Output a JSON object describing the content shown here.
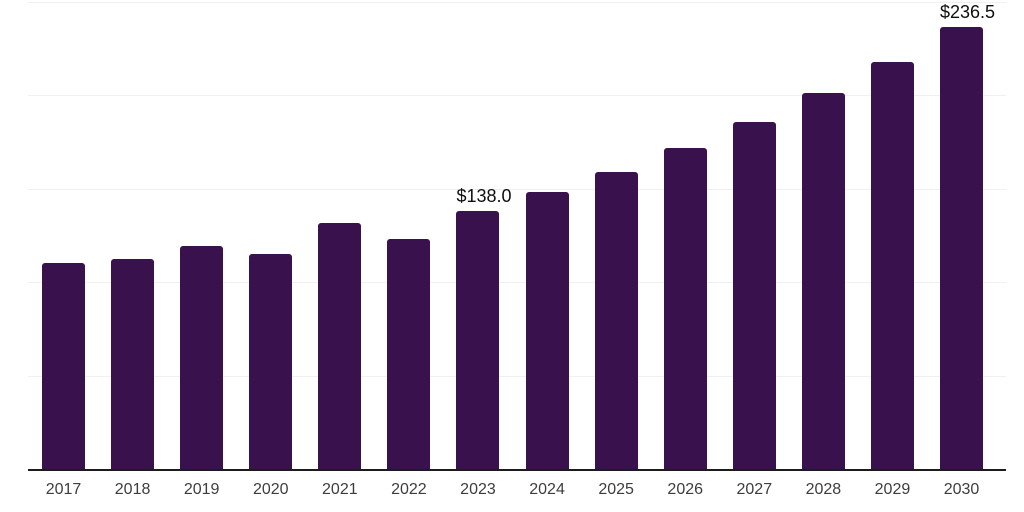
{
  "chart_data": {
    "type": "bar",
    "title": "",
    "xlabel": "",
    "ylabel": "",
    "categories": [
      "2017",
      "2018",
      "2019",
      "2020",
      "2021",
      "2022",
      "2023",
      "2024",
      "2025",
      "2026",
      "2027",
      "2028",
      "2029",
      "2030"
    ],
    "values": [
      110.3,
      112.2,
      119.4,
      115.1,
      131.7,
      123.1,
      138.0,
      148.3,
      159.0,
      171.8,
      185.7,
      201.3,
      217.9,
      236.5
    ],
    "bar_labels": [
      "",
      "",
      "",
      "",
      "",
      "",
      "$138.0",
      "",
      "",
      "",
      "",
      "",
      "",
      "$236.5"
    ],
    "ylim": [
      0,
      250
    ],
    "grid": true,
    "gridline_step": 50,
    "legend": "none",
    "colors": {
      "bar_fill": "#38114D",
      "gridline": "#f0f0f2",
      "axis_line": "#1c1c1c",
      "tick_label": "#3d3d3d",
      "data_label": "#0f0f0f",
      "background": "#ffffff"
    }
  }
}
